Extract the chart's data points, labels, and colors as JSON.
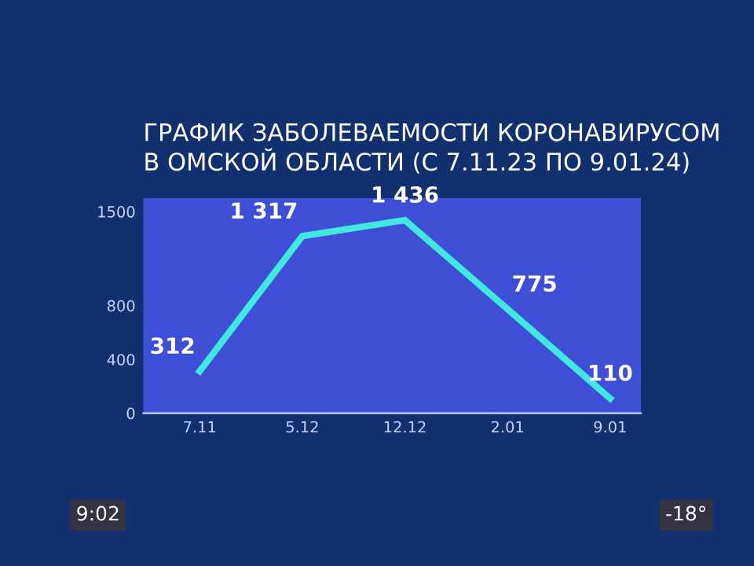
{
  "chart_data": {
    "type": "line",
    "title": "ГРАФИК ЗАБОЛЕВАЕМОСТИ КОРОНАВИРУСОМ\nВ ОМСКОЙ ОБЛАСТИ (С 7.11.23 ПО 9.01.24)",
    "categories": [
      "7.11",
      "5.12",
      "12.12",
      "2.01",
      "9.01"
    ],
    "series": [
      {
        "color": "#40e8e0",
        "values": [
          312,
          1317,
          1436,
          775,
          110
        ],
        "value_labels": [
          "312",
          "1 317",
          "1 436",
          "775",
          "110"
        ]
      }
    ],
    "ylim": [
      0,
      1600
    ],
    "yticks": [
      0,
      400,
      800,
      1500
    ],
    "grid": false,
    "marker": "none",
    "line_style": "solid",
    "annotations": [
      "9:02",
      "-18°"
    ]
  }
}
